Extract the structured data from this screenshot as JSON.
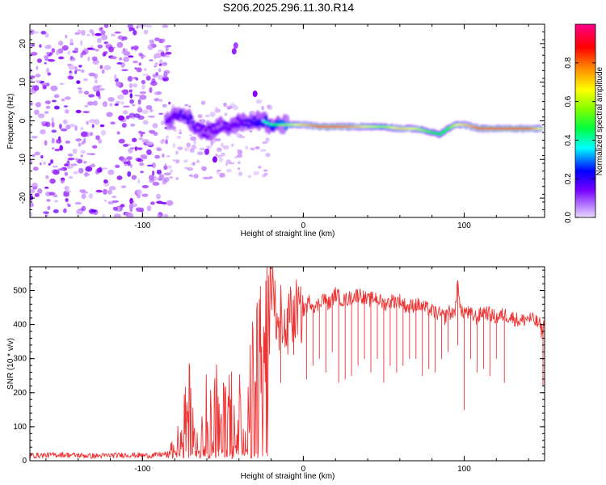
{
  "chart_data": [
    {
      "type": "heatmap",
      "title": "S206.2025.296.11.30.R14",
      "xlabel": "Height of straight line (km)",
      "ylabel": "Frequency (Hz)",
      "xlim": [
        -170,
        150
      ],
      "ylim": [
        -25,
        25
      ],
      "x_ticks": [
        -100,
        0,
        100
      ],
      "y_ticks": [
        -20,
        -10,
        0,
        10,
        20
      ],
      "colorbar": {
        "label": "Normalized spectral amplitude",
        "range": [
          0.0,
          1.0
        ],
        "ticks": [
          "0.0",
          "0.2",
          "0.4",
          "0.6",
          "0.8"
        ],
        "tick_values": [
          0.0,
          0.2,
          0.4,
          0.6,
          0.8
        ],
        "colors": [
          "#e8d8ff",
          "#8800ff",
          "#0000ff",
          "#00ffff",
          "#00ff00",
          "#ffff00",
          "#ff0000",
          "#ff0088"
        ]
      },
      "ridge": {
        "x": [
          -85,
          -80,
          -75,
          -70,
          -65,
          -60,
          -55,
          -50,
          -45,
          -40,
          -35,
          -30,
          -25,
          -20,
          -15,
          -10,
          0,
          10,
          20,
          30,
          40,
          50,
          60,
          70,
          80,
          85,
          90,
          95,
          100,
          110,
          120,
          130,
          140,
          148
        ],
        "freq": [
          0,
          1,
          2,
          0,
          -2,
          -3,
          -2,
          -1,
          -2,
          0,
          -1,
          0,
          0,
          -1,
          -1,
          -1,
          -1,
          -1.5,
          -1.5,
          -1.5,
          -1.5,
          -1.5,
          -2,
          -2,
          -3,
          -3.5,
          -2,
          -1,
          -1,
          -2,
          -2,
          -2,
          -2,
          -2
        ],
        "amplitude": [
          0.3,
          0.3,
          0.35,
          0.35,
          0.3,
          0.3,
          0.3,
          0.3,
          0.3,
          0.3,
          0.35,
          0.4,
          0.45,
          0.5,
          0.6,
          0.65,
          0.75,
          0.85,
          0.85,
          0.8,
          0.7,
          0.65,
          0.75,
          0.7,
          0.6,
          0.55,
          0.6,
          0.7,
          0.75,
          0.85,
          0.85,
          0.85,
          0.85,
          0.7
        ]
      },
      "noise_region_x": [
        -170,
        -85
      ]
    },
    {
      "type": "line",
      "xlabel": "Height of straight line (km)",
      "ylabel": "SNR (10 * v/v)",
      "xlim": [
        -170,
        150
      ],
      "ylim": [
        0,
        570
      ],
      "x_ticks": [
        -100,
        0,
        100
      ],
      "y_ticks": [
        0,
        100,
        200,
        300,
        400,
        500
      ],
      "line_color": "#ee3333",
      "series": [
        {
          "name": "SNR",
          "x": [
            -170,
            -150,
            -130,
            -110,
            -95,
            -85,
            -80,
            -76,
            -72,
            -70,
            -68,
            -65,
            -62,
            -60,
            -57,
            -55,
            -52,
            -50,
            -47,
            -45,
            -42,
            -40,
            -38,
            -35,
            -32,
            -30,
            -28,
            -25,
            -22,
            -20,
            -19,
            -18,
            -17,
            -16,
            -15,
            -14,
            -12,
            -10,
            -8,
            -6,
            -4,
            -2,
            0,
            4,
            8,
            12,
            16,
            20,
            25,
            30,
            35,
            40,
            45,
            50,
            55,
            60,
            65,
            70,
            75,
            80,
            85,
            88,
            90,
            92,
            95,
            96,
            98,
            100,
            104,
            108,
            112,
            116,
            120,
            125,
            130,
            135,
            140,
            144,
            147,
            148,
            149,
            150
          ],
          "y": [
            15,
            18,
            14,
            17,
            15,
            20,
            40,
            90,
            150,
            200,
            120,
            170,
            60,
            220,
            100,
            250,
            80,
            210,
            130,
            180,
            90,
            200,
            40,
            120,
            260,
            180,
            350,
            300,
            460,
            430,
            570,
            500,
            380,
            460,
            330,
            440,
            400,
            360,
            470,
            390,
            460,
            420,
            440,
            470,
            450,
            480,
            460,
            490,
            470,
            480,
            490,
            470,
            480,
            460,
            470,
            470,
            450,
            460,
            450,
            440,
            430,
            420,
            440,
            430,
            450,
            540,
            430,
            440,
            430,
            420,
            440,
            430,
            420,
            430,
            420,
            410,
            420,
            410,
            400,
            380,
            390,
            400
          ]
        }
      ],
      "dips": [
        {
          "x": -14,
          "y": 230
        },
        {
          "x": -6,
          "y": 330
        },
        {
          "x": 2,
          "y": 240
        },
        {
          "x": 6,
          "y": 280
        },
        {
          "x": 10,
          "y": 300
        },
        {
          "x": 14,
          "y": 260
        },
        {
          "x": 18,
          "y": 320
        },
        {
          "x": 22,
          "y": 230
        },
        {
          "x": 26,
          "y": 240
        },
        {
          "x": 30,
          "y": 250
        },
        {
          "x": 34,
          "y": 280
        },
        {
          "x": 38,
          "y": 300
        },
        {
          "x": 42,
          "y": 260
        },
        {
          "x": 46,
          "y": 300
        },
        {
          "x": 50,
          "y": 230
        },
        {
          "x": 54,
          "y": 280
        },
        {
          "x": 58,
          "y": 260
        },
        {
          "x": 62,
          "y": 280
        },
        {
          "x": 66,
          "y": 300
        },
        {
          "x": 70,
          "y": 300
        },
        {
          "x": 74,
          "y": 250
        },
        {
          "x": 78,
          "y": 270
        },
        {
          "x": 82,
          "y": 260
        },
        {
          "x": 86,
          "y": 300
        },
        {
          "x": 90,
          "y": 320
        },
        {
          "x": 96,
          "y": 340
        },
        {
          "x": 100,
          "y": 150
        },
        {
          "x": 104,
          "y": 300
        },
        {
          "x": 108,
          "y": 260
        },
        {
          "x": 112,
          "y": 270
        },
        {
          "x": 116,
          "y": 250
        },
        {
          "x": 120,
          "y": 300
        },
        {
          "x": 125,
          "y": 230
        },
        {
          "x": 149,
          "y": 220
        }
      ]
    }
  ]
}
